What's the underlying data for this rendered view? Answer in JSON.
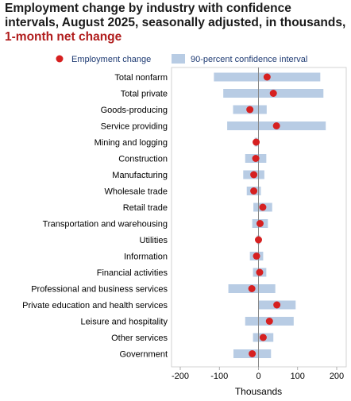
{
  "title_main": "Employment change by industry with confidence intervals, August 2025, seasonally adjusted, in thousands,",
  "title_accent": "1-month net change",
  "colors": {
    "ci": "#b8cce4",
    "point": "#d62020",
    "accent": "#b01c1c",
    "zero": "#888888"
  },
  "chart_data": {
    "type": "scatter",
    "orientation": "horizontal",
    "legend": {
      "position": "top",
      "point_label": "Employment change",
      "interval_label": "90-percent confidence interval"
    },
    "xlabel": "Thousands",
    "xlim": [
      -200,
      200
    ],
    "xticks": [
      -200,
      -100,
      0,
      100,
      200
    ],
    "xtick_labels": [
      "-200",
      "-100",
      "0",
      "100",
      "200"
    ],
    "categories": [
      "Total nonfarm",
      "Total private",
      "Goods-producing",
      "Service providing",
      "Mining and logging",
      "Construction",
      "Manufacturing",
      "Wholesale trade",
      "Retail trade",
      "Transportation and warehousing",
      "Utilities",
      "Information",
      "Financial activities",
      "Professional and business services",
      "Private education and health services",
      "Leisure and hospitality",
      "Other services",
      "Government"
    ],
    "values": [
      22,
      38,
      -22,
      46,
      -6,
      -7,
      -12,
      -12,
      11,
      4,
      0,
      -5,
      3,
      -17,
      47,
      28,
      12,
      -16
    ],
    "ci_low": [
      -114,
      -90,
      -65,
      -80,
      -10,
      -34,
      -39,
      -30,
      -13,
      -16,
      -4,
      -22,
      -14,
      -77,
      -1,
      -34,
      -14,
      -64
    ],
    "ci_high": [
      158,
      166,
      21,
      172,
      -2,
      20,
      15,
      6,
      35,
      24,
      4,
      12,
      20,
      43,
      95,
      90,
      38,
      32
    ]
  }
}
